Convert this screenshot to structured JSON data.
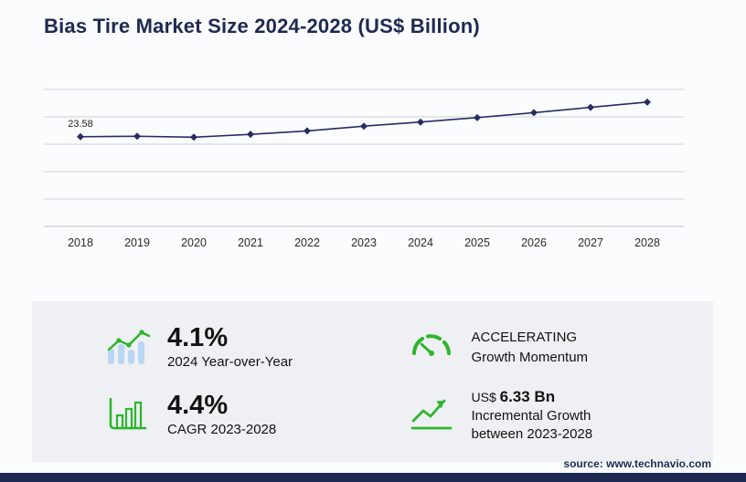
{
  "title": "Bias Tire Market Size 2024-2028 (US$ Billion)",
  "source": "source: www.technavio.com",
  "colors": {
    "navy": "#252d63",
    "green": "#2db52d",
    "light_blue": "#b9d7f2",
    "grid": "#cfd3d9",
    "panel_bg": "#eef0f3"
  },
  "chart_data": {
    "type": "line",
    "title": "Bias Tire Market Size 2024-2028 (US$ Billion)",
    "x": [
      "2018",
      "2019",
      "2020",
      "2021",
      "2022",
      "2023",
      "2024",
      "2025",
      "2026",
      "2027",
      "2028"
    ],
    "series": [
      {
        "name": "Market Size (US$ Billion)",
        "values": [
          23.58,
          23.7,
          23.45,
          24.2,
          25.1,
          26.35,
          27.43,
          28.6,
          29.9,
          31.3,
          32.68
        ]
      }
    ],
    "annotations": [
      {
        "x_index": 0,
        "text": "23.58"
      }
    ],
    "ylim": [
      0,
      36
    ],
    "grid": "horizontal",
    "legend": "none",
    "marker": "diamond"
  },
  "stats": [
    {
      "icon": "bar-line-growth-icon",
      "value": "4.1%",
      "label": "2024 Year-over-Year"
    },
    {
      "icon": "speedometer-icon",
      "value": "ACCELERATING",
      "label": "Growth Momentum"
    },
    {
      "icon": "bar-chart-box-icon",
      "value": "4.4%",
      "label": "CAGR 2023-2028"
    },
    {
      "icon": "incremental-growth-icon",
      "value_prefix": "US$",
      "value": "6.33 Bn",
      "label": "Incremental Growth between 2023-2028"
    }
  ]
}
